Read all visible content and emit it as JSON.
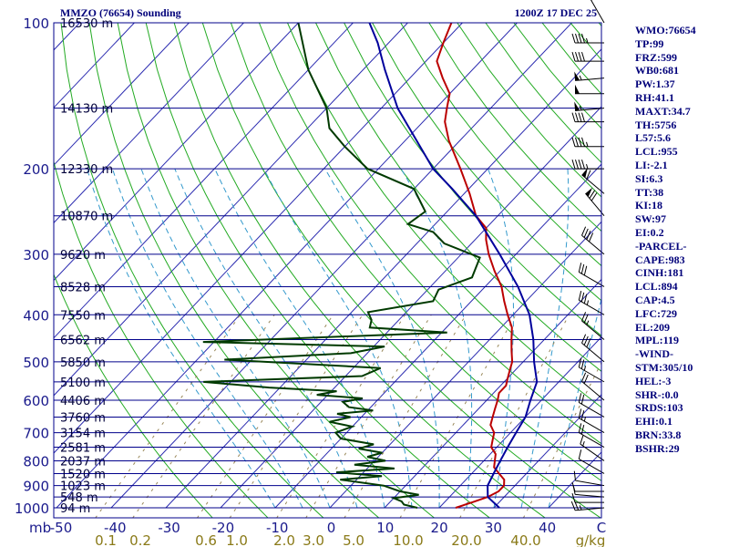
{
  "header": {
    "station": "MMZO (76654) Sounding",
    "time": "1200Z 17 DEC 25"
  },
  "indices": [
    "WMO:76654",
    "TP:99",
    "FRZ:599",
    "WB0:681",
    "PW:1.37",
    "RH:41.1",
    "MAXT:34.7",
    "TH:5756",
    "L57:5.6",
    "LCL:955",
    "LI:-2.1",
    "SI:6.3",
    "TT:38",
    "KI:18",
    "SW:97",
    "EI:0.2",
    "-PARCEL-",
    "CAPE:983",
    "CINH:181",
    "LCL:894",
    "CAP:4.5",
    "LFC:729",
    "EL:209",
    "MPL:119",
    "-WIND-",
    "STM:305/10",
    "HEL:-3",
    "SHR-:0.0",
    "SRDS:103",
    "EHI:0.1",
    "BRN:33.8",
    "BSHR:29"
  ],
  "chart_data": {
    "type": "line",
    "subtype": "skew-T log-P sounding",
    "p_labels": [
      {
        "p": 100,
        "text": "100"
      },
      {
        "p": 200,
        "text": "200"
      },
      {
        "p": 300,
        "text": "300"
      },
      {
        "p": 400,
        "text": "400"
      },
      {
        "p": 500,
        "text": "500"
      },
      {
        "p": 600,
        "text": "600"
      },
      {
        "p": 700,
        "text": "700"
      },
      {
        "p": 800,
        "text": "800"
      },
      {
        "p": 900,
        "text": "900"
      },
      {
        "p": 1000,
        "text": "1000"
      }
    ],
    "p_unit": "mb",
    "heights": [
      {
        "p": 100,
        "text": "16530 m"
      },
      {
        "p": 150,
        "text": "14130 m"
      },
      {
        "p": 200,
        "text": "12330 m"
      },
      {
        "p": 250,
        "text": "10870 m"
      },
      {
        "p": 300,
        "text": "9620 m"
      },
      {
        "p": 350,
        "text": "8528 m"
      },
      {
        "p": 400,
        "text": "7550 m"
      },
      {
        "p": 450,
        "text": "6562 m"
      },
      {
        "p": 500,
        "text": "5850 m"
      },
      {
        "p": 550,
        "text": "5100 m"
      },
      {
        "p": 600,
        "text": "4406 m"
      },
      {
        "p": 650,
        "text": "3760 m"
      },
      {
        "p": 700,
        "text": "3154 m"
      },
      {
        "p": 750,
        "text": "2581 m"
      },
      {
        "p": 800,
        "text": "2037 m"
      },
      {
        "p": 850,
        "text": "1520 m"
      },
      {
        "p": 900,
        "text": "1023 m"
      },
      {
        "p": 950,
        "text": "548 m"
      },
      {
        "p": 1000,
        "text": "94 m"
      }
    ],
    "x_ticks": [
      "-50",
      "-40",
      "-30",
      "-20",
      "-10",
      "0",
      "10",
      "20",
      "30",
      "40",
      "C"
    ],
    "w_ticks": [
      "0.1",
      "0.2",
      "0.6",
      "1.0",
      "2.0",
      "3.0",
      "5.0",
      "10.0",
      "20.0",
      "40.0",
      "g/kg"
    ],
    "series": [
      {
        "color": "#bb0000",
        "points": [
          [
            1000,
            23
          ],
          [
            975,
            25
          ],
          [
            950,
            27
          ],
          [
            925,
            28
          ],
          [
            900,
            28
          ],
          [
            875,
            27
          ],
          [
            850,
            25
          ],
          [
            825,
            23
          ],
          [
            800,
            22
          ],
          [
            775,
            21
          ],
          [
            750,
            19
          ],
          [
            725,
            18
          ],
          [
            700,
            17
          ],
          [
            675,
            15
          ],
          [
            650,
            14
          ],
          [
            625,
            13
          ],
          [
            600,
            12
          ],
          [
            580,
            11
          ],
          [
            560,
            11
          ],
          [
            540,
            10
          ],
          [
            520,
            9
          ],
          [
            500,
            8
          ],
          [
            475,
            6
          ],
          [
            450,
            4
          ],
          [
            425,
            2
          ],
          [
            400,
            -1
          ],
          [
            375,
            -4
          ],
          [
            350,
            -7
          ],
          [
            325,
            -11
          ],
          [
            300,
            -15
          ],
          [
            280,
            -18
          ],
          [
            265,
            -20
          ],
          [
            250,
            -24
          ],
          [
            225,
            -29
          ],
          [
            200,
            -35
          ],
          [
            175,
            -42
          ],
          [
            160,
            -46
          ],
          [
            150,
            -48
          ],
          [
            140,
            -50
          ],
          [
            130,
            -54
          ],
          [
            120,
            -58
          ],
          [
            110,
            -60
          ],
          [
            100,
            -62
          ]
        ]
      },
      {
        "color": "#003a00",
        "points": [
          [
            1000,
            16
          ],
          [
            985,
            13
          ],
          [
            970,
            12
          ],
          [
            955,
            10
          ],
          [
            940,
            14
          ],
          [
            925,
            10
          ],
          [
            900,
            6
          ],
          [
            875,
            -3
          ],
          [
            860,
            4
          ],
          [
            845,
            -5
          ],
          [
            830,
            5
          ],
          [
            815,
            -3
          ],
          [
            800,
            2
          ],
          [
            785,
            -2
          ],
          [
            770,
            0
          ],
          [
            755,
            -5
          ],
          [
            740,
            -3
          ],
          [
            720,
            -10
          ],
          [
            700,
            -12
          ],
          [
            680,
            -10
          ],
          [
            665,
            -15
          ],
          [
            650,
            -12
          ],
          [
            640,
            -15
          ],
          [
            630,
            -9
          ],
          [
            620,
            -14
          ],
          [
            605,
            -16
          ],
          [
            595,
            -13
          ],
          [
            585,
            -22
          ],
          [
            575,
            -19
          ],
          [
            565,
            -32
          ],
          [
            550,
            -45
          ],
          [
            535,
            -17
          ],
          [
            515,
            -15
          ],
          [
            495,
            -45
          ],
          [
            480,
            -23
          ],
          [
            465,
            -18
          ],
          [
            455,
            -52
          ],
          [
            435,
            -9
          ],
          [
            425,
            -24
          ],
          [
            410,
            -25
          ],
          [
            395,
            -27
          ],
          [
            375,
            -17
          ],
          [
            355,
            -18
          ],
          [
            335,
            -14
          ],
          [
            305,
            -16
          ],
          [
            285,
            -25
          ],
          [
            270,
            -29
          ],
          [
            260,
            -35
          ],
          [
            245,
            -34
          ],
          [
            220,
            -40
          ],
          [
            200,
            -52
          ],
          [
            180,
            -60
          ],
          [
            165,
            -66
          ],
          [
            150,
            -70
          ],
          [
            125,
            -80
          ],
          [
            100,
            -90
          ]
        ]
      },
      {
        "color": "#00009c",
        "points": [
          [
            1000,
            31
          ],
          [
            950,
            27
          ],
          [
            900,
            25
          ],
          [
            850,
            24
          ],
          [
            800,
            23
          ],
          [
            750,
            22
          ],
          [
            700,
            21
          ],
          [
            650,
            20
          ],
          [
            600,
            18
          ],
          [
            550,
            16
          ],
          [
            500,
            12
          ],
          [
            450,
            8
          ],
          [
            400,
            3
          ],
          [
            350,
            -4
          ],
          [
            300,
            -13
          ],
          [
            250,
            -24
          ],
          [
            220,
            -33
          ],
          [
            200,
            -40
          ],
          [
            150,
            -57
          ],
          [
            125,
            -66
          ],
          [
            110,
            -72
          ],
          [
            100,
            -77
          ]
        ]
      }
    ],
    "wind_barbs": [
      {
        "p": 1000,
        "dir": 265,
        "spd": 25
      },
      {
        "p": 975,
        "dir": 270,
        "spd": 10
      },
      {
        "p": 950,
        "dir": 275,
        "spd": 10
      },
      {
        "p": 925,
        "dir": 270,
        "spd": 10
      },
      {
        "p": 900,
        "dir": 280,
        "spd": 10
      },
      {
        "p": 850,
        "dir": 300,
        "spd": 10
      },
      {
        "p": 800,
        "dir": 305,
        "spd": 15
      },
      {
        "p": 750,
        "dir": 300,
        "spd": 20
      },
      {
        "p": 700,
        "dir": 300,
        "spd": 25
      },
      {
        "p": 650,
        "dir": 300,
        "spd": 20
      },
      {
        "p": 600,
        "dir": 310,
        "spd": 20
      },
      {
        "p": 550,
        "dir": 300,
        "spd": 25
      },
      {
        "p": 500,
        "dir": 310,
        "spd": 30
      },
      {
        "p": 450,
        "dir": 310,
        "spd": 25
      },
      {
        "p": 400,
        "dir": 300,
        "spd": 35
      },
      {
        "p": 350,
        "dir": 300,
        "spd": 30
      },
      {
        "p": 300,
        "dir": 310,
        "spd": 40
      },
      {
        "p": 250,
        "dir": 320,
        "spd": 70
      },
      {
        "p": 225,
        "dir": 310,
        "spd": 60
      },
      {
        "p": 200,
        "dir": 270,
        "spd": 45
      },
      {
        "p": 180,
        "dir": 270,
        "spd": 45
      },
      {
        "p": 160,
        "dir": 270,
        "spd": 40
      },
      {
        "p": 150,
        "dir": 265,
        "spd": 55
      },
      {
        "p": 140,
        "dir": 270,
        "spd": 50
      },
      {
        "p": 130,
        "dir": 265,
        "spd": 55
      },
      {
        "p": 120,
        "dir": 270,
        "spd": 40
      },
      {
        "p": 110,
        "dir": 270,
        "spd": 45
      },
      {
        "p": 100,
        "dir": 330,
        "spd": 15
      }
    ],
    "colors": {
      "isobar": "#00008b",
      "isotherm": "#2b2bb0",
      "dry_adiabat": "#22aa22",
      "moist_adiabat": "#3399cc",
      "mixing_ratio": "#99885a",
      "temperature": "#bb0000",
      "dewpoint": "#003a00",
      "parcel": "#00009c",
      "wind": "#000000"
    }
  }
}
